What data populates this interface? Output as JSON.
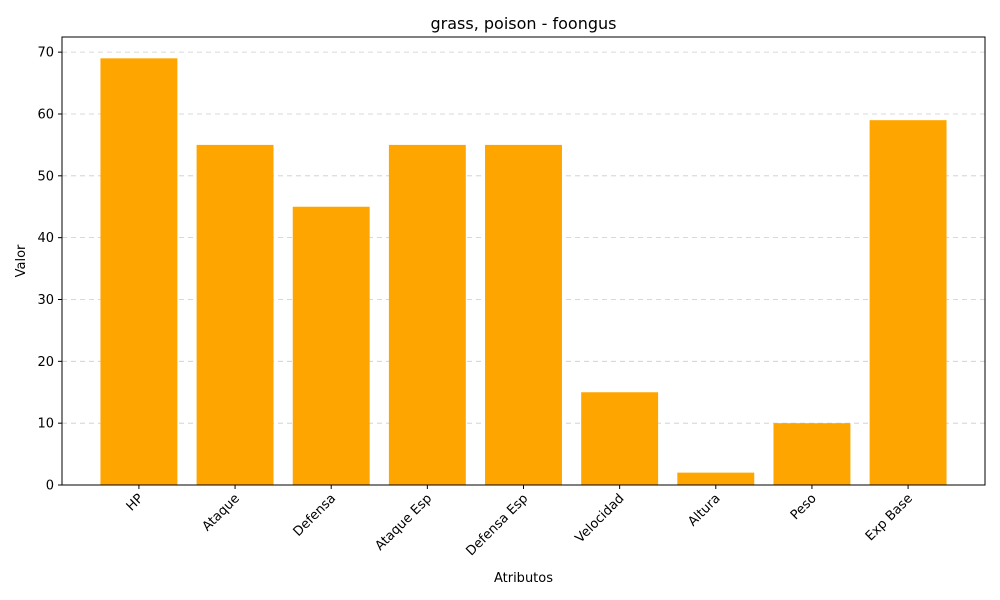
{
  "chart_data": {
    "type": "bar",
    "title": "grass, poison - foongus",
    "xlabel": "Atributos",
    "ylabel": "Valor",
    "categories": [
      "HP",
      "Ataque",
      "Defensa",
      "Ataque Esp",
      "Defensa Esp",
      "Velocidad",
      "Altura",
      "Peso",
      "Exp Base"
    ],
    "values": [
      69,
      55,
      45,
      55,
      55,
      15,
      2,
      10,
      59
    ],
    "ylim": [
      0,
      72.45
    ],
    "yticks": [
      0,
      10,
      20,
      30,
      40,
      50,
      60,
      70
    ],
    "grid": "y-dashed",
    "bar_color": "#ffa500",
    "x_tick_rotation_deg": 45
  }
}
